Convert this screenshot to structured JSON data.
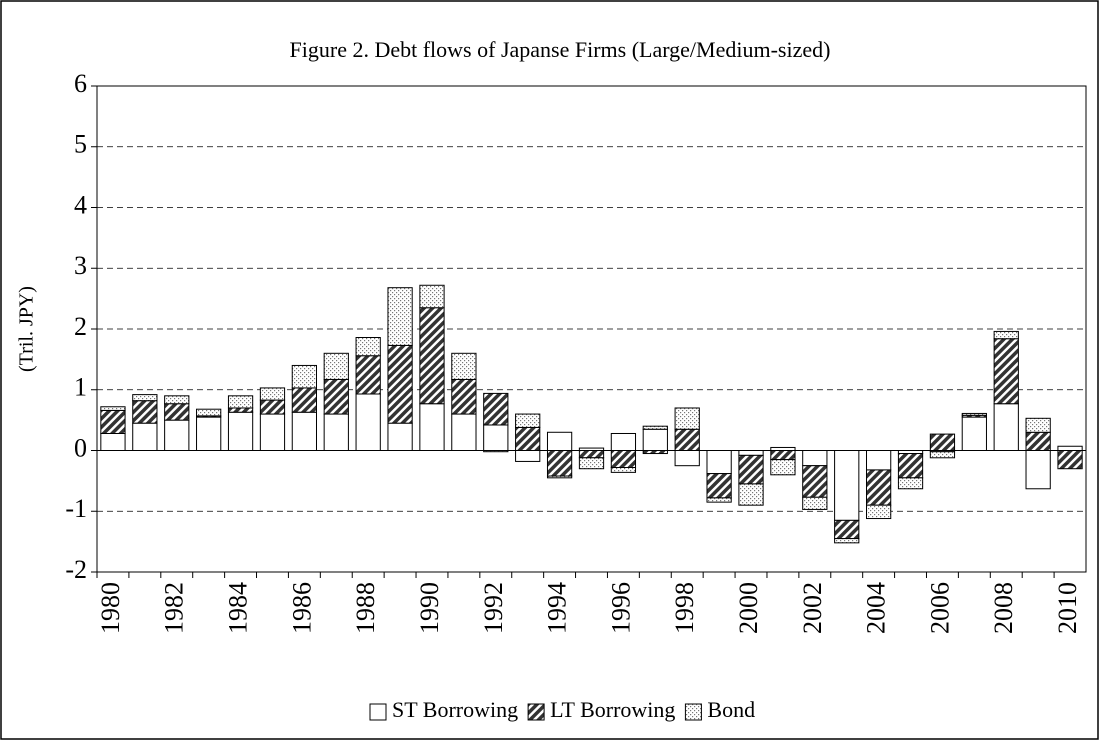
{
  "chart_data": {
    "type": "bar",
    "stacked": true,
    "title": "Figure 2. Debt flows of Japanse Firms (Large/Medium-sized)",
    "y_label": "(Tril. JPY)",
    "categories": [
      "1980",
      null,
      "1982",
      null,
      "1984",
      null,
      "1986",
      null,
      "1988",
      null,
      "1990",
      null,
      "1992",
      null,
      "1994",
      null,
      "1996",
      null,
      "1998",
      null,
      "2000",
      null,
      "2002",
      null,
      "2004",
      null,
      "2006",
      null,
      "2008",
      null,
      "2010"
    ],
    "series": [
      {
        "name": "ST Borrowing",
        "color": "#ffffff",
        "pattern": "solid",
        "values": [
          0.28,
          0.45,
          0.5,
          0.55,
          0.63,
          0.6,
          0.63,
          0.6,
          0.93,
          0.45,
          0.77,
          0.6,
          0.42,
          -0.18,
          0.3,
          0.04,
          0.28,
          0.35,
          -0.25,
          -0.38,
          -0.08,
          0.05,
          -0.25,
          -1.15,
          -0.32,
          -0.05,
          -0.02,
          0.55,
          0.77,
          -0.63,
          0.07
        ]
      },
      {
        "name": "LT Borrowing",
        "color": "#333333",
        "pattern": "hatch",
        "values": [
          0.38,
          0.37,
          0.27,
          0.02,
          0.07,
          0.23,
          0.4,
          0.57,
          0.63,
          1.28,
          1.58,
          0.57,
          0.52,
          0.38,
          -0.42,
          -0.12,
          -0.28,
          -0.05,
          0.35,
          -0.4,
          -0.47,
          -0.15,
          -0.52,
          -0.3,
          -0.58,
          -0.4,
          0.27,
          0.03,
          1.07,
          0.3,
          -0.3
        ]
      },
      {
        "name": "Bond",
        "color": "#999999",
        "pattern": "dots",
        "values": [
          0.06,
          0.1,
          0.13,
          0.11,
          0.2,
          0.2,
          0.37,
          0.43,
          0.3,
          0.95,
          0.37,
          0.43,
          -0.02,
          0.22,
          -0.03,
          -0.18,
          -0.08,
          0.05,
          0.35,
          -0.07,
          -0.35,
          -0.25,
          -0.2,
          -0.07,
          -0.22,
          -0.18,
          -0.1,
          0.03,
          0.12,
          0.23,
          0.0
        ]
      }
    ],
    "ylim": [
      -2,
      6
    ],
    "yticks": [
      -2,
      -1,
      0,
      1,
      2,
      3,
      4,
      5,
      6
    ],
    "grid": true,
    "legend": "bottom"
  }
}
